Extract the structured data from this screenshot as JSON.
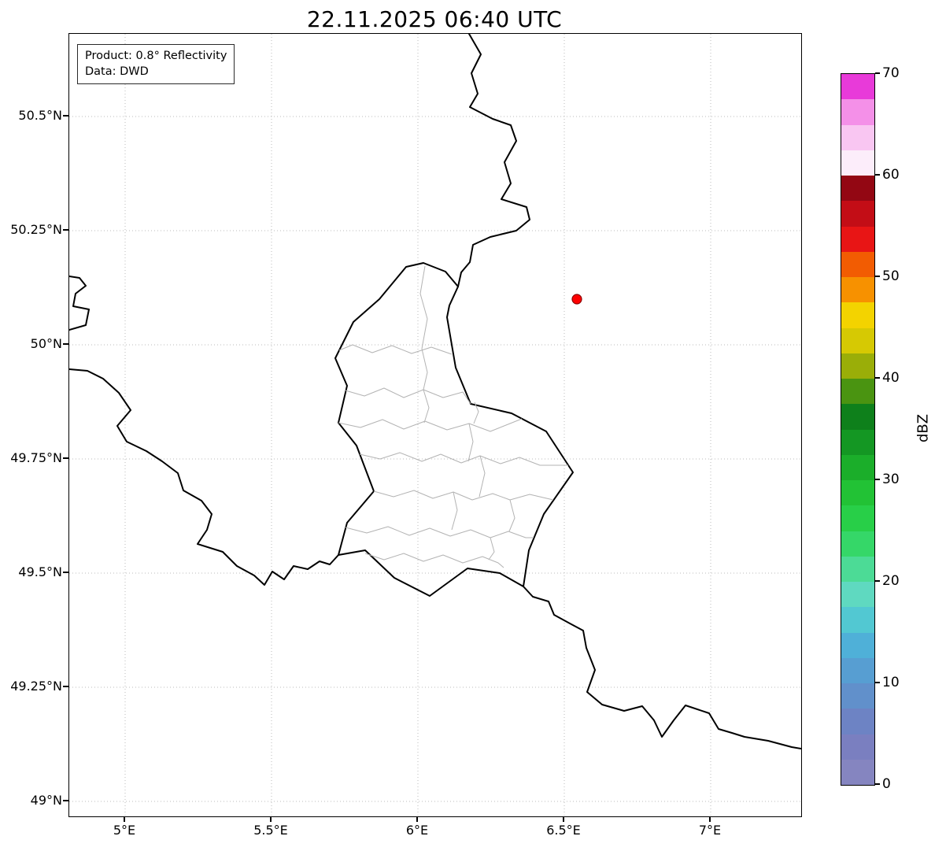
{
  "title": "22.11.2025 06:40 UTC",
  "info_box": {
    "line1": "Product: 0.8° Reflectivity",
    "line2": "Data: DWD"
  },
  "axes": {
    "x_ticks": [
      "5°E",
      "5.5°E",
      "6°E",
      "6.5°E",
      "7°E"
    ],
    "y_ticks": [
      "50.5°N",
      "50.25°N",
      "50°N",
      "49.75°N",
      "49.5°N",
      "49.25°N",
      "49°N"
    ]
  },
  "colorbar": {
    "label": "dBZ",
    "ticks": [
      "70",
      "60",
      "50",
      "40",
      "30",
      "20",
      "10",
      "0"
    ],
    "min": 0,
    "max": 70,
    "colors_bottom_to_top": [
      "#8585c0",
      "#7a7fc0",
      "#6d83c4",
      "#6190cb",
      "#579ed2",
      "#4fb0d8",
      "#52c8d2",
      "#5fd9c0",
      "#4cdb96",
      "#35d768",
      "#28cf48",
      "#22c235",
      "#1bae2a",
      "#149723",
      "#0e801b",
      "#4a9411",
      "#9aae08",
      "#d6c903",
      "#f3d300",
      "#f79100",
      "#f25c02",
      "#e81515",
      "#c30d16",
      "#930713",
      "#fcedfa",
      "#f9c6f2",
      "#f490e8",
      "#e83ad9"
    ]
  },
  "map": {
    "border_color": "#000000",
    "subdivision_color": "#b3b3b3",
    "grid_color": "#bbbbbb"
  },
  "radar_site": {
    "color": "#ff0000",
    "edge_color": "#8b0000"
  }
}
